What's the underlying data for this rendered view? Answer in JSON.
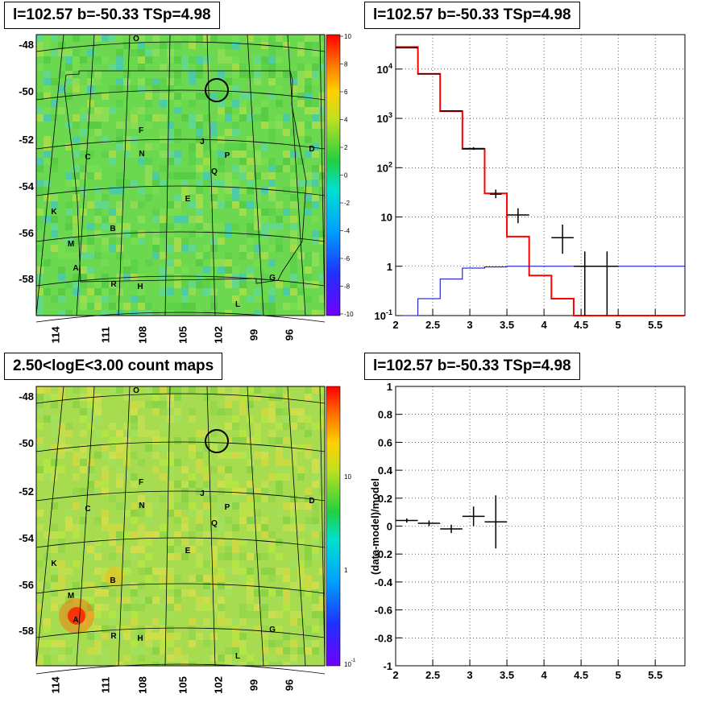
{
  "titles": {
    "tl": "l=102.57 b=-50.33 TSp=4.98",
    "tr": "l=102.57 b=-50.33 TSp=4.98",
    "bl": "2.50<logE<3.00 count maps",
    "br": "l=102.57 b=-50.33 TSp=4.98"
  },
  "source_labels": [
    "O",
    "F",
    "C",
    "N",
    "J",
    "P",
    "D",
    "Q",
    "E",
    "K",
    "B",
    "M",
    "A",
    "R",
    "H",
    "G",
    "L"
  ],
  "chart_data": [
    {
      "type": "heatmap",
      "panel": "residual-map",
      "title": "l=102.57 b=-50.33 TSp=4.98",
      "x_ticks": [
        "114",
        "111",
        "108",
        "105",
        "102",
        "99",
        "96"
      ],
      "y_ticks": [
        "-48",
        "-50",
        "-52",
        "-54",
        "-56",
        "-58"
      ],
      "colorbar_ticks": [
        "10",
        "8",
        "6",
        "4",
        "2",
        "0",
        "-2",
        "-4",
        "-6",
        "-8",
        "-10"
      ],
      "colorbar_range": [
        -10,
        10
      ]
    },
    {
      "type": "line",
      "panel": "spectrum",
      "title": "l=102.57 b=-50.33 TSp=4.98",
      "xlim": [
        2,
        5.9
      ],
      "ylim": [
        0.1,
        50000
      ],
      "y_scale": "log",
      "x_ticks": [
        "2",
        "2.5",
        "3",
        "3.5",
        "4",
        "4.5",
        "5",
        "5.5"
      ],
      "y_ticks": [
        "10^4",
        "10^3",
        "10^2",
        "10",
        "1",
        "10^-1"
      ],
      "grid": true,
      "series": [
        {
          "color": "#ff0000",
          "style": "step",
          "edges": [
            2.0,
            2.3,
            2.6,
            2.9,
            3.2,
            3.5,
            3.8,
            4.1,
            4.4,
            4.7,
            5.0,
            5.3,
            5.6,
            5.9
          ],
          "values": [
            28000,
            8000,
            1400,
            240,
            30,
            4,
            0.65,
            0.22,
            0.08,
            0.1,
            0.1,
            0.1,
            0.1
          ]
        },
        {
          "color": "#0000cc",
          "style": "step",
          "edges": [
            2.0,
            2.3,
            2.6,
            2.9,
            3.2,
            3.5,
            3.8,
            4.1,
            4.4,
            4.7,
            5.0,
            5.3,
            5.6,
            5.9
          ],
          "values": [
            0.05,
            0.22,
            0.55,
            0.92,
            0.97,
            1.0,
            1.0,
            1.0,
            1.0,
            1.0,
            1.0,
            1.0,
            1.0
          ]
        },
        {
          "color": "#000000",
          "style": "errorbar",
          "points": [
            {
              "x": 2.15,
              "y": 27000,
              "xerr": 0.15,
              "ylo": 26500,
              "yhi": 27500
            },
            {
              "x": 2.45,
              "y": 8000,
              "xerr": 0.15,
              "ylo": 7900,
              "yhi": 8100
            },
            {
              "x": 2.75,
              "y": 1420,
              "xerr": 0.15,
              "ylo": 1380,
              "yhi": 1460
            },
            {
              "x": 3.05,
              "y": 245,
              "xerr": 0.15,
              "ylo": 230,
              "yhi": 260
            },
            {
              "x": 3.35,
              "y": 29,
              "xerr": 0.08,
              "ylo": 24,
              "yhi": 36
            },
            {
              "x": 3.65,
              "y": 11,
              "xerr": 0.15,
              "ylo": 7.5,
              "yhi": 15
            },
            {
              "x": 4.25,
              "y": 3.8,
              "xerr": 0.15,
              "ylo": 1.8,
              "yhi": 7
            },
            {
              "x": 4.55,
              "y": 1.0,
              "xerr": 0.15,
              "ylo": 0.08,
              "yhi": 2
            },
            {
              "x": 4.85,
              "y": 1.0,
              "xerr": 0.15,
              "ylo": 0.08,
              "yhi": 2
            }
          ]
        }
      ]
    },
    {
      "type": "heatmap",
      "panel": "count-map",
      "title": "2.50<logE<3.00 count maps",
      "x_ticks": [
        "114",
        "111",
        "108",
        "105",
        "102",
        "99",
        "96"
      ],
      "y_ticks": [
        "-48",
        "-50",
        "-52",
        "-54",
        "-56",
        "-58"
      ],
      "colorbar_ticks": [
        "10",
        "1",
        "10^-1"
      ],
      "colorbar_scale": "log"
    },
    {
      "type": "scatter",
      "panel": "residual",
      "title": "l=102.57 b=-50.33 TSp=4.98",
      "ylabel": "(data-model)/model",
      "xlim": [
        2,
        5.9
      ],
      "ylim": [
        -1,
        1
      ],
      "x_ticks": [
        "2",
        "2.5",
        "3",
        "3.5",
        "4",
        "4.5",
        "5",
        "5.5"
      ],
      "y_ticks": [
        "1",
        "0.8",
        "0.6",
        "0.4",
        "0.2",
        "0",
        "-0.2",
        "-0.4",
        "-0.6",
        "-0.8",
        "-1"
      ],
      "grid": true,
      "points": [
        {
          "x": 2.15,
          "y": 0.04,
          "xerr": 0.15,
          "yerr": 0.015
        },
        {
          "x": 2.45,
          "y": 0.02,
          "xerr": 0.15,
          "yerr": 0.02
        },
        {
          "x": 2.75,
          "y": -0.02,
          "xerr": 0.15,
          "yerr": 0.03
        },
        {
          "x": 3.05,
          "y": 0.07,
          "xerr": 0.15,
          "yerr": 0.07
        },
        {
          "x": 3.35,
          "y": 0.03,
          "xerr": 0.15,
          "yerr": 0.19
        }
      ]
    }
  ]
}
